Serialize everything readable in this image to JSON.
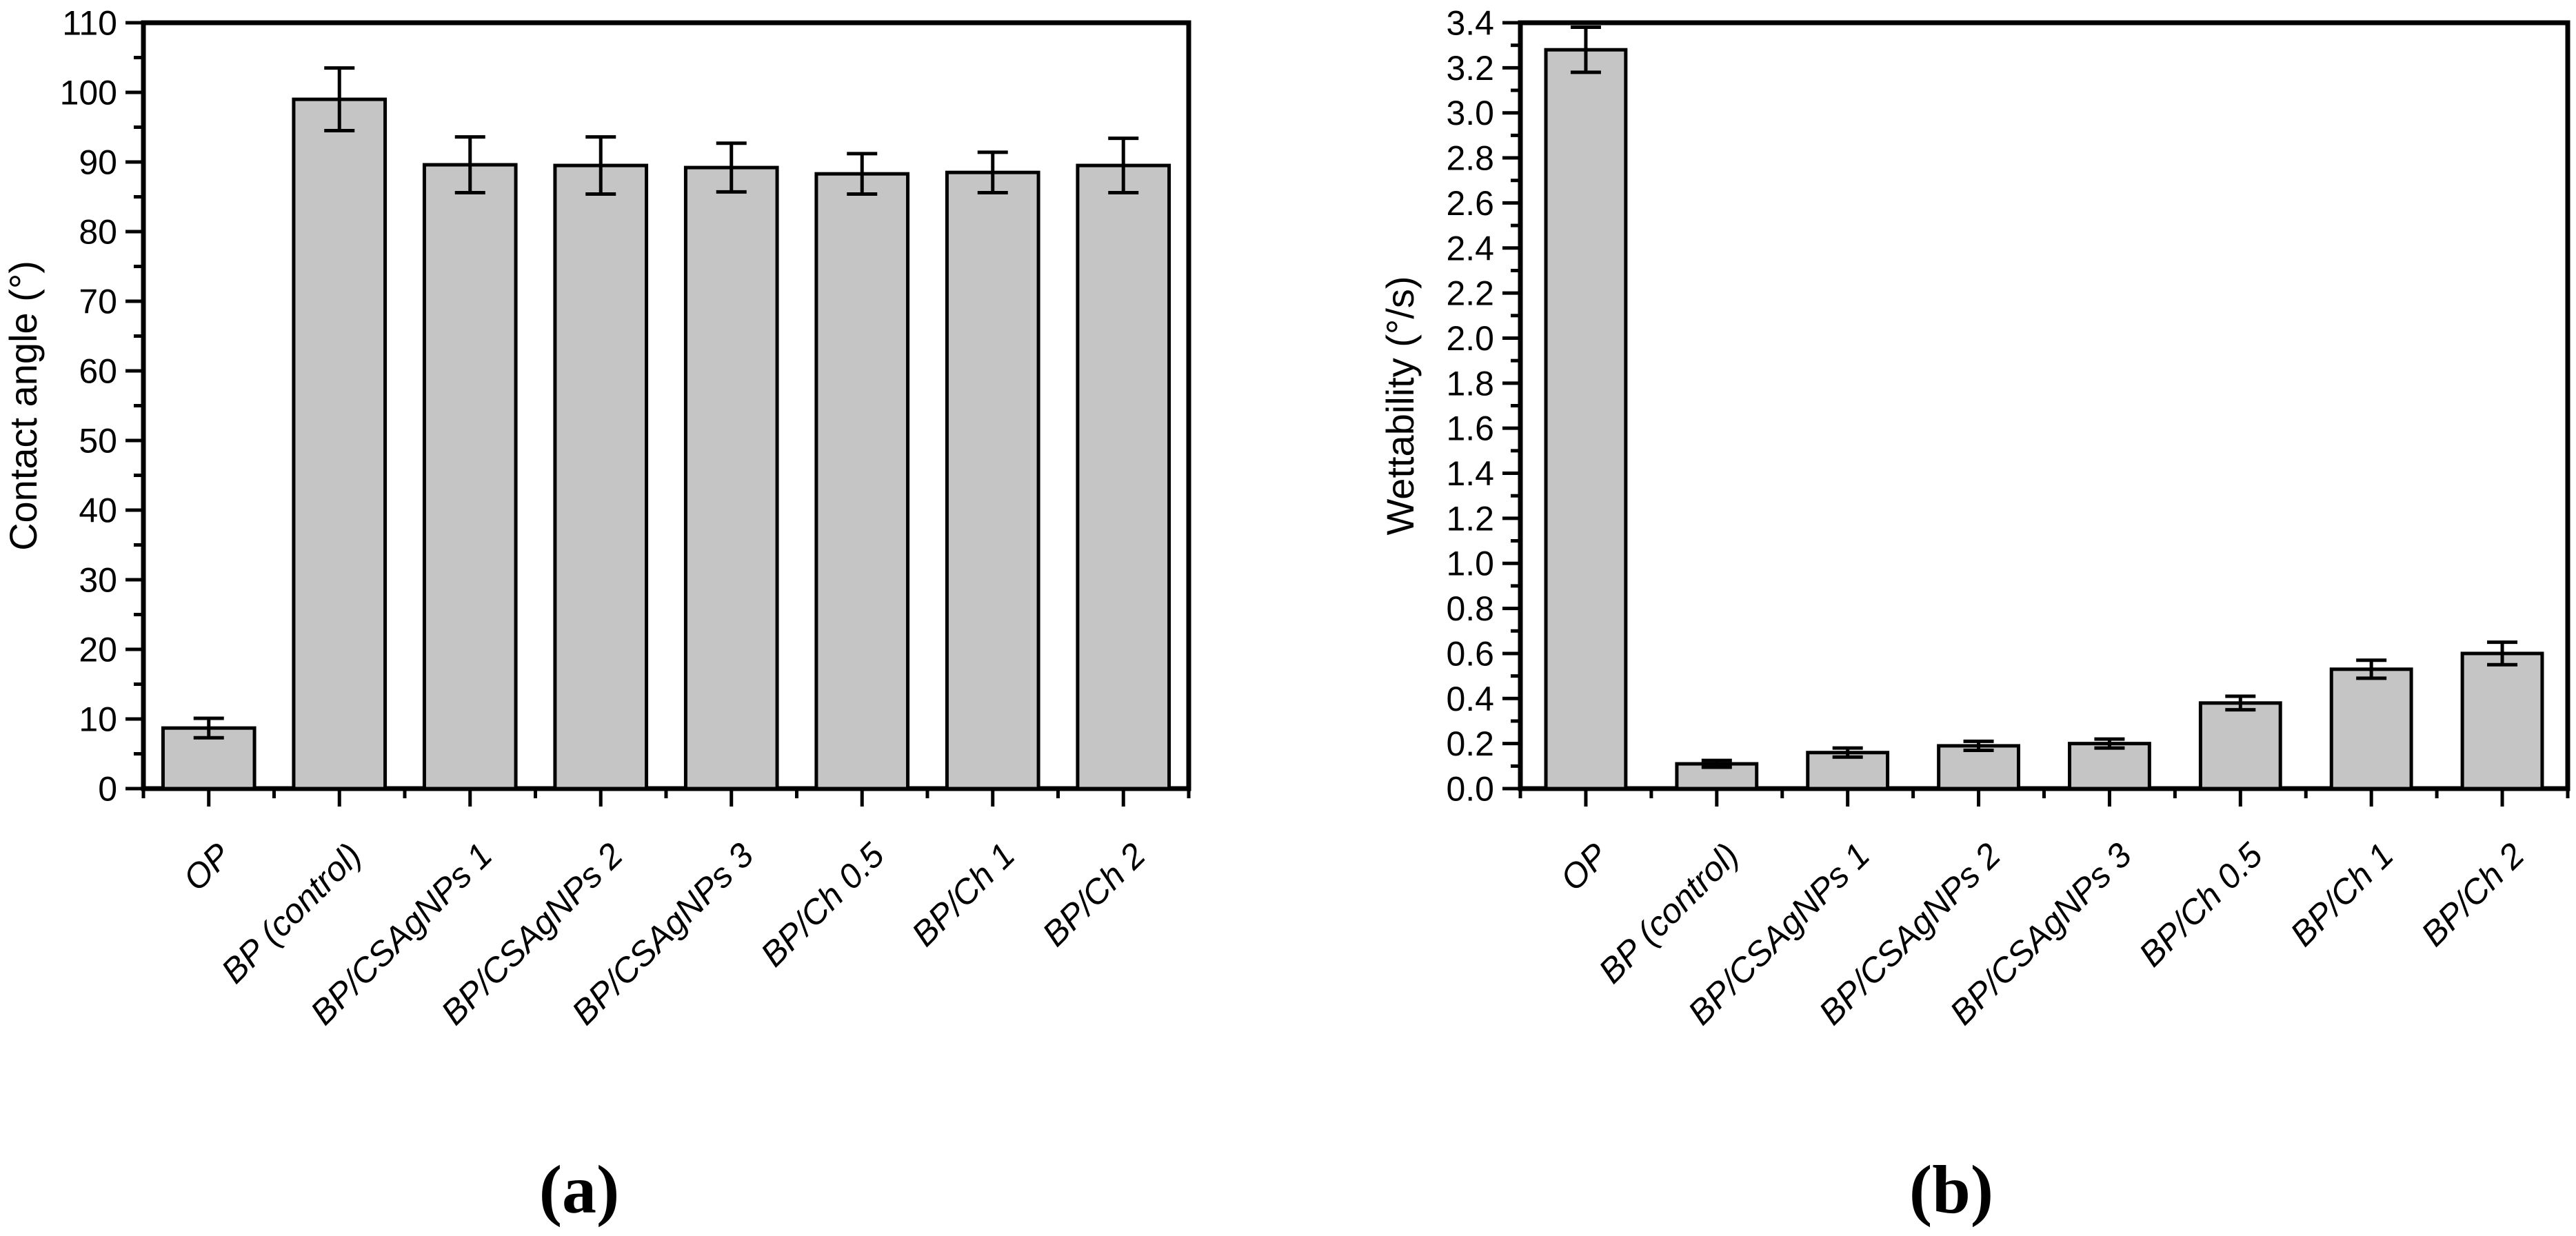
{
  "figure": {
    "background": "#ffffff",
    "bar_fill": "#c5c5c5",
    "bar_stroke": "#000000",
    "axis_color": "#000000",
    "text_color": "#000000"
  },
  "chart_data": [
    {
      "id": "a",
      "type": "bar",
      "title": "",
      "caption": "(a)",
      "xlabel": "",
      "ylabel": "Contact angle (°)",
      "categories": [
        "OP",
        "BP (control)",
        "BP/CSAgNPs 1",
        "BP/CSAgNPs 2",
        "BP/CSAgNPs 3",
        "BP/Ch 0.5",
        "BP/Ch 1",
        "BP/Ch 2"
      ],
      "values": [
        8.7,
        99.0,
        89.6,
        89.5,
        89.2,
        88.3,
        88.5,
        89.5
      ],
      "errors": [
        1.4,
        4.5,
        4.0,
        4.1,
        3.5,
        2.9,
        2.9,
        3.9
      ],
      "ylim": [
        0,
        110
      ],
      "ytick_step": 10,
      "yminor_step": 5,
      "ytick_decimals": 0,
      "ytick_labels": [
        "0",
        "10",
        "20",
        "30",
        "40",
        "50",
        "60",
        "70",
        "80",
        "90",
        "100",
        "110"
      ],
      "grid": false,
      "legend": null
    },
    {
      "id": "b",
      "type": "bar",
      "title": "",
      "caption": "(b)",
      "xlabel": "",
      "ylabel": "Wettability (°/s)",
      "categories": [
        "OP",
        "BP (control)",
        "BP/CSAgNPs 1",
        "BP/CSAgNPs 2",
        "BP/CSAgNPs 3",
        "BP/Ch 0.5",
        "BP/Ch 1",
        "BP/Ch 2"
      ],
      "values": [
        3.28,
        0.11,
        0.16,
        0.19,
        0.2,
        0.38,
        0.53,
        0.6
      ],
      "errors": [
        0.1,
        0.015,
        0.02,
        0.02,
        0.02,
        0.03,
        0.04,
        0.05
      ],
      "ylim": [
        0,
        3.4
      ],
      "ytick_step": 0.2,
      "yminor_step": 0.1,
      "ytick_decimals": 1,
      "ytick_labels": [
        "0.0",
        "0.2",
        "0.4",
        "0.6",
        "0.8",
        "1.0",
        "1.2",
        "1.4",
        "1.6",
        "1.8",
        "2.0",
        "2.2",
        "2.4",
        "2.6",
        "2.8",
        "3.0",
        "3.2",
        "3.4"
      ],
      "grid": false,
      "legend": null
    }
  ]
}
